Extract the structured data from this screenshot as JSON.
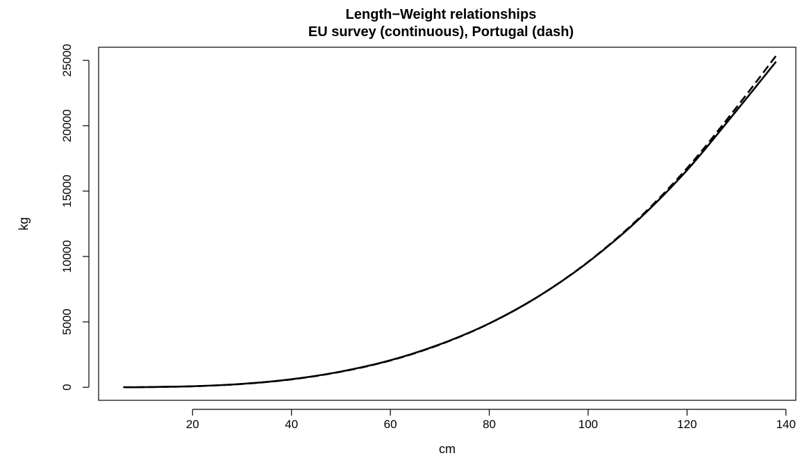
{
  "chart_data": {
    "type": "line",
    "title": "Length−Weight relationships",
    "subtitle": "EU survey (continuous), Portugal (dash)",
    "xlabel": "cm",
    "ylabel": "kg",
    "xlim": [
      1,
      142
    ],
    "ylim": [
      -1000,
      26000
    ],
    "x_ticks": [
      20,
      40,
      60,
      80,
      100,
      120,
      140
    ],
    "y_ticks": [
      0,
      5000,
      10000,
      15000,
      20000,
      25000
    ],
    "grid": false,
    "legend": "none",
    "series": [
      {
        "style": "solid",
        "color": "#000000",
        "x": [
          6,
          10,
          20,
          30,
          40,
          50,
          60,
          70,
          80,
          90,
          100,
          110,
          120,
          130,
          138
        ],
        "y": [
          2,
          9,
          75,
          255,
          610,
          1200,
          2060,
          3280,
          4880,
          6960,
          9570,
          12760,
          16600,
          21150,
          24900
        ]
      },
      {
        "style": "dash",
        "color": "#000000",
        "x": [
          6,
          10,
          20,
          30,
          40,
          50,
          60,
          70,
          80,
          90,
          100,
          110,
          120,
          130,
          138
        ],
        "y": [
          2,
          9,
          73,
          250,
          600,
          1185,
          2045,
          3260,
          4870,
          6960,
          9590,
          12830,
          16750,
          21400,
          25350
        ]
      }
    ]
  }
}
